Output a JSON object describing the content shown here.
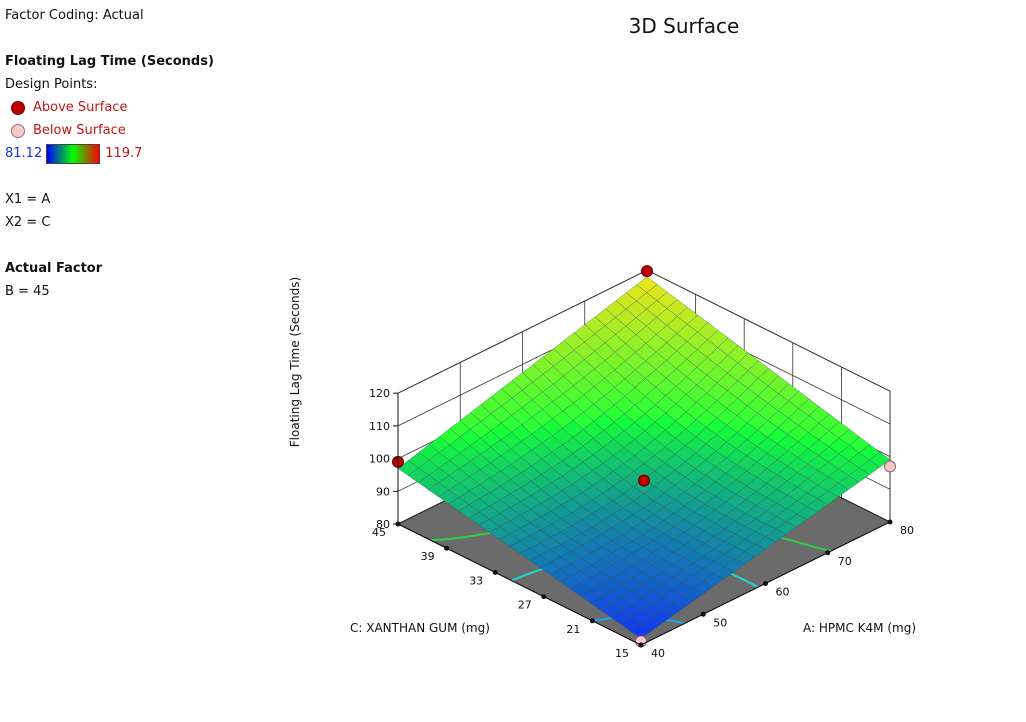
{
  "legend": {
    "factor_coding": "Factor Coding: Actual",
    "response_title": "Floating Lag Time (Seconds)",
    "design_points_label": "Design Points:",
    "above_surface": "Above Surface",
    "below_surface": "Below Surface",
    "scale_min": "81.12",
    "scale_max": "119.7",
    "x1": "X1 = A",
    "x2": "X2 = C",
    "actual_factor_title": "Actual Factor",
    "actual_factor_value": "B = 45"
  },
  "colors": {
    "above_point": "#c00000",
    "below_point": "#f9c9c9",
    "floor": "#6b6b6b",
    "scale_low": "#0000ff",
    "scale_mid": "#00ff00",
    "scale_high": "#ff0000"
  },
  "chart_data": {
    "type": "surface3d",
    "title": "3D Surface",
    "xlabel": "A: HPMC K4M (mg)",
    "ylabel": "C: XANTHAN GUM (mg)",
    "zlabel": "Floating Lag Time (Seconds)",
    "x_range": [
      40,
      80
    ],
    "y_range": [
      15,
      45
    ],
    "z_range": [
      80,
      120
    ],
    "x_ticks": [
      "40",
      "50",
      "60",
      "70",
      "80"
    ],
    "y_ticks": [
      "15",
      "21",
      "27",
      "33",
      "39",
      "45"
    ],
    "z_ticks": [
      "80",
      "90",
      "100",
      "110",
      "120"
    ],
    "color_range": [
      81.12,
      119.7
    ],
    "surface_corners": {
      "x40_y15": 82,
      "x80_y15": 99,
      "x40_y45": 97,
      "x80_y45": 118
    },
    "surface_min": {
      "x": 50,
      "y": 21,
      "z": 81.5
    },
    "design_points": [
      {
        "x": 80,
        "y": 45,
        "z": 119.7,
        "type": "above"
      },
      {
        "x": 40,
        "y": 45,
        "z": 99,
        "type": "above"
      },
      {
        "x": 80,
        "y": 15,
        "z": 97,
        "type": "below"
      },
      {
        "x": 60,
        "y": 30,
        "z": 93,
        "type": "above"
      },
      {
        "x": 40,
        "y": 15,
        "z": 81.12,
        "type": "below"
      }
    ],
    "contour_levels": [
      85,
      90,
      95
    ],
    "contour_colors": [
      "#1aa8ee",
      "#22d8cc",
      "#30cc4a"
    ]
  }
}
